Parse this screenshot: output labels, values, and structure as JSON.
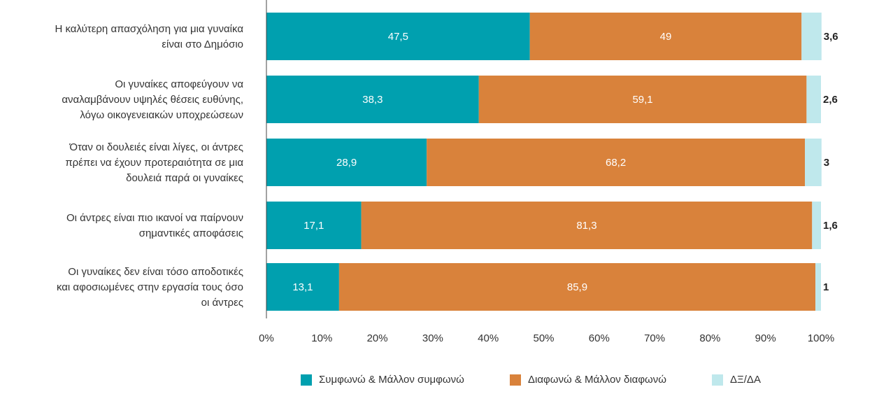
{
  "colors": {
    "agree": "#00a0af",
    "disagree": "#d9823b",
    "dk": "#bfe8ec",
    "axis": "#444444",
    "text": "#333333"
  },
  "chart_data": {
    "type": "bar",
    "orientation": "horizontal",
    "stacked": true,
    "percent_stacked": true,
    "title": "",
    "xlabel": "",
    "ylabel": "",
    "xlim": [
      0,
      100
    ],
    "x_ticks": [
      "0%",
      "10%",
      "20%",
      "30%",
      "40%",
      "50%",
      "60%",
      "70%",
      "80%",
      "90%",
      "100%"
    ],
    "grid": false,
    "legend_position": "bottom",
    "categories": [
      [
        "Η καλύτερη απασχόληση για μια γυναίκα",
        "είναι στο Δημόσιο"
      ],
      [
        "Οι γυναίκες αποφεύγουν να",
        "αναλαμβάνουν υψηλές θέσεις ευθύνης,",
        "λόγω οικογενειακών υποχρεώσεων"
      ],
      [
        "Όταν οι δουλειές είναι λίγες, οι άντρες",
        "πρέπει να έχουν προτεραιότητα σε μια",
        "δουλειά παρά οι γυναίκες"
      ],
      [
        "Οι άντρες είναι πιο ικανοί να παίρνουν",
        "σημαντικές αποφάσεις"
      ],
      [
        "Οι γυναίκες δεν είναι τόσο αποδοτικές",
        "και αφοσιωμένες στην εργασία τους όσο",
        "οι άντρες"
      ]
    ],
    "series": [
      {
        "name": "Συμφωνώ & Μάλλον συμφωνώ",
        "values": [
          47.5,
          38.3,
          28.9,
          17.1,
          13.1
        ],
        "labels": [
          "47,5",
          "38,3",
          "28,9",
          "17,1",
          "13,1"
        ]
      },
      {
        "name": "Διαφωνώ & Μάλλον διαφωνώ",
        "values": [
          49,
          59.1,
          68.2,
          81.3,
          85.9
        ],
        "labels": [
          "49",
          "59,1",
          "68,2",
          "81,3",
          "85,9"
        ]
      },
      {
        "name": "ΔΞ/ΔΑ",
        "values": [
          3.6,
          2.6,
          3,
          1.6,
          1
        ],
        "labels": [
          "3,6",
          "2,6",
          "3",
          "1,6",
          "1"
        ]
      }
    ]
  }
}
